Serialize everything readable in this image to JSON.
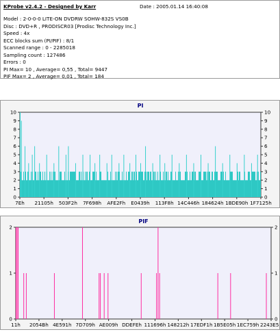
{
  "header": {
    "title": "KProbe v2.4.2 - Designed by Karr",
    "date": "Date : 2005.01.14 16:40:08"
  },
  "info_lines": [
    "Model : 2-0-0-0 LITE-ON DVDRW SOHW-832S  VS0B",
    "Disc : DVD+R , PRODISCR03 [Prodisc Technology Inc.]",
    "Speed : 4x",
    "ECC blocks sum (PI/PIF) : 8/1",
    "Scanned range : 0 - 2285018",
    "Sampling count : 127486",
    "Errors : 0",
    "PI Max= 10 , Average= 0,55 , Total= 9447",
    "PIF Max= 2 , Average= 0,01 , Total= 184"
  ],
  "colors": {
    "pi_bar": "#2ec8c4",
    "pi_spike": "#36d0cc",
    "pif_line": "#ff2ba0",
    "plot_bg": "#f0f0fb",
    "title": "#000080"
  },
  "chart_data": [
    {
      "type": "bar",
      "title": "PI",
      "ylim": [
        0,
        10
      ],
      "yticks": [
        0,
        1,
        2,
        3,
        4,
        5,
        6,
        7,
        8,
        9,
        10
      ],
      "xticks": [
        "7Eh",
        "21105h",
        "503F2h",
        "7F698h",
        "AFE2Fh",
        "E0439h",
        "113F8h",
        "14C446h",
        "184624h",
        "1BDE90h",
        "1F7125h"
      ],
      "baseline": 2,
      "baseline_noise": 1,
      "spikes": [
        {
          "x": 0.0,
          "v": 10
        },
        {
          "x": 0.005,
          "v": 9
        },
        {
          "x": 0.02,
          "v": 6
        },
        {
          "x": 0.035,
          "v": 4
        },
        {
          "x": 0.05,
          "v": 5
        },
        {
          "x": 0.06,
          "v": 6
        },
        {
          "x": 0.08,
          "v": 4
        },
        {
          "x": 0.11,
          "v": 5
        },
        {
          "x": 0.14,
          "v": 4
        },
        {
          "x": 0.16,
          "v": 6
        },
        {
          "x": 0.19,
          "v": 5
        },
        {
          "x": 0.2,
          "v": 6
        },
        {
          "x": 0.23,
          "v": 4
        },
        {
          "x": 0.26,
          "v": 5
        },
        {
          "x": 0.29,
          "v": 5
        },
        {
          "x": 0.31,
          "v": 4
        },
        {
          "x": 0.33,
          "v": 5
        },
        {
          "x": 0.36,
          "v": 4
        },
        {
          "x": 0.38,
          "v": 5
        },
        {
          "x": 0.41,
          "v": 4
        },
        {
          "x": 0.43,
          "v": 5
        },
        {
          "x": 0.455,
          "v": 4
        },
        {
          "x": 0.48,
          "v": 5
        },
        {
          "x": 0.5,
          "v": 4
        },
        {
          "x": 0.52,
          "v": 6
        },
        {
          "x": 0.55,
          "v": 4
        },
        {
          "x": 0.58,
          "v": 5
        },
        {
          "x": 0.6,
          "v": 4
        },
        {
          "x": 0.63,
          "v": 5
        },
        {
          "x": 0.66,
          "v": 4
        },
        {
          "x": 0.69,
          "v": 5
        },
        {
          "x": 0.72,
          "v": 4
        },
        {
          "x": 0.75,
          "v": 5
        },
        {
          "x": 0.78,
          "v": 4
        },
        {
          "x": 0.81,
          "v": 6
        },
        {
          "x": 0.84,
          "v": 4
        },
        {
          "x": 0.87,
          "v": 5
        },
        {
          "x": 0.9,
          "v": 4
        },
        {
          "x": 0.93,
          "v": 5
        },
        {
          "x": 0.96,
          "v": 4
        },
        {
          "x": 0.985,
          "v": 5
        }
      ]
    },
    {
      "type": "bar",
      "title": "PIF",
      "ylim": [
        0,
        2
      ],
      "yticks": [
        0,
        1,
        2
      ],
      "xticks": [
        "11h",
        "2054Bh",
        "4E591h",
        "7D709h",
        "AE009h",
        "DDEFEh",
        "111696h",
        "148212h",
        "17EDF1h",
        "1B5E05h",
        "1EC759h",
        "2243E5h"
      ],
      "spikes": [
        {
          "x": 0.0,
          "v": 2
        },
        {
          "x": 0.004,
          "v": 2
        },
        {
          "x": 0.008,
          "v": 2
        },
        {
          "x": 0.03,
          "v": 1
        },
        {
          "x": 0.04,
          "v": 1
        },
        {
          "x": 0.15,
          "v": 1
        },
        {
          "x": 0.26,
          "v": 2
        },
        {
          "x": 0.325,
          "v": 1
        },
        {
          "x": 0.33,
          "v": 1
        },
        {
          "x": 0.345,
          "v": 1
        },
        {
          "x": 0.36,
          "v": 1
        },
        {
          "x": 0.49,
          "v": 1
        },
        {
          "x": 0.55,
          "v": 1
        },
        {
          "x": 0.556,
          "v": 2
        },
        {
          "x": 0.562,
          "v": 1
        },
        {
          "x": 0.79,
          "v": 1
        },
        {
          "x": 0.84,
          "v": 1
        },
        {
          "x": 0.98,
          "v": 1
        }
      ]
    }
  ]
}
